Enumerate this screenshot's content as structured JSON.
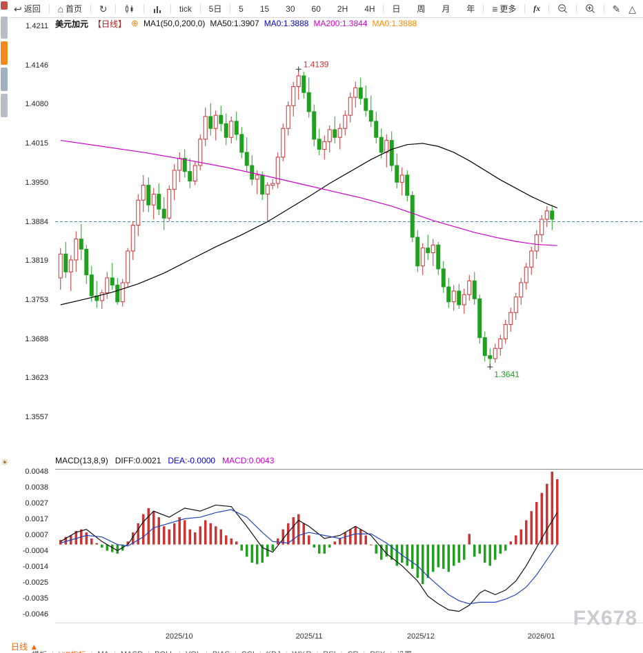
{
  "icons": {
    "back": "↩",
    "home": "⌂",
    "refresh": "↻",
    "menu": "≡",
    "pen": "✎",
    "triangle": "△",
    "sun": "☀",
    "plus": "⊕"
  },
  "toolbar": {
    "back_label": "返回",
    "home_label": "首页",
    "tick_label": "tick",
    "five_day_label": "5日",
    "intervals": [
      "5",
      "15",
      "30",
      "60",
      "2H",
      "4H"
    ],
    "periods": [
      "日",
      "周",
      "月",
      "年"
    ],
    "more_label": "更多",
    "fx_label": "fx"
  },
  "chart_header": {
    "symbol": "美元加元",
    "period_tag": "【日线】",
    "ma_settings": "MA1(50,0,200,0)",
    "ma50": "MA50:1.3907",
    "ma0_blue": "MA0:1.3888",
    "ma200": "MA200:1.3844",
    "ma0_orange": "MA0:1.3888"
  },
  "macd_header": {
    "name": "MACD(13,8,9)",
    "diff": "DIFF:0.0021",
    "dea": "DEA:-0.0000",
    "macd": "MACD:0.0043"
  },
  "price_axis": [
    "1.4211",
    "1.4146",
    "1.4080",
    "1.4015",
    "1.3950",
    "1.3884",
    "1.3819",
    "1.3753",
    "1.3688",
    "1.3623",
    "1.3557"
  ],
  "macd_axis": [
    "0.0048",
    "0.0038",
    "0.0027",
    "0.0017",
    "0.0007",
    "-0.0004",
    "-0.0014",
    "-0.0025",
    "-0.0035",
    "-0.0046"
  ],
  "x_axis": [
    "2025/10",
    "2025/11",
    "2025/12",
    "2026/01"
  ],
  "annotations": {
    "high": "1.4139",
    "low": "1.3641"
  },
  "bottom_bar": {
    "period_label": "日线 ▲",
    "tabs": [
      "模板",
      "VIP指标",
      "MA",
      "MACD",
      "BOLL",
      "VOL",
      "BIAS",
      "CCI",
      "KDJ",
      "W%R",
      "RSI",
      "CR",
      "PSY",
      "设置"
    ],
    "highlight_tab": "VIP指标"
  },
  "watermark": "FX678",
  "colors": {
    "up": "#cc3333",
    "down": "#1fa01f",
    "ma_fast": "#000000",
    "ma_slow": "#cc00cc",
    "dashed": "#3a8fa3",
    "diff_line": "#111111",
    "dea_line": "#2244bb",
    "highlight": "#ff6600"
  },
  "chart_data": {
    "type": "candlestick",
    "symbol": "美元加元 (USD/CAD)",
    "interval": "daily",
    "price_axis_top": 1.4211,
    "price_axis_bottom": 1.3557,
    "last_price": 1.3884,
    "high_point": 1.4139,
    "low_point": 1.3641,
    "x_labels": [
      "2025/10",
      "2025/11",
      "2025/12",
      "2026/01"
    ],
    "candles": [
      [
        1.379,
        1.384,
        1.377,
        1.383
      ],
      [
        1.383,
        1.385,
        1.379,
        1.38
      ],
      [
        1.38,
        1.3828,
        1.3768,
        1.382
      ],
      [
        1.382,
        1.3868,
        1.38,
        1.3855
      ],
      [
        1.3855,
        1.388,
        1.382,
        1.3838
      ],
      [
        1.3838,
        1.3845,
        1.378,
        1.3795
      ],
      [
        1.3795,
        1.381,
        1.375,
        1.376
      ],
      [
        1.376,
        1.3785,
        1.374,
        1.3752
      ],
      [
        1.3752,
        1.377,
        1.3738,
        1.3765
      ],
      [
        1.3765,
        1.38,
        1.3755,
        1.379
      ],
      [
        1.379,
        1.3815,
        1.377,
        1.3778
      ],
      [
        1.3778,
        1.379,
        1.3745,
        1.375
      ],
      [
        1.375,
        1.3788,
        1.3742,
        1.3782
      ],
      [
        1.3782,
        1.384,
        1.3775,
        1.3835
      ],
      [
        1.3835,
        1.3885,
        1.382,
        1.3878
      ],
      [
        1.3878,
        1.393,
        1.386,
        1.392
      ],
      [
        1.392,
        1.3962,
        1.39,
        1.3945
      ],
      [
        1.3945,
        1.3958,
        1.39,
        1.3912
      ],
      [
        1.3912,
        1.394,
        1.3888,
        1.393
      ],
      [
        1.393,
        1.3948,
        1.3895,
        1.3905
      ],
      [
        1.3905,
        1.3925,
        1.387,
        1.389
      ],
      [
        1.389,
        1.3945,
        1.3885,
        1.3938
      ],
      [
        1.3938,
        1.398,
        1.392,
        1.397
      ],
      [
        1.397,
        1.4,
        1.395,
        1.399
      ],
      [
        1.399,
        1.4005,
        1.3958,
        1.3968
      ],
      [
        1.3968,
        1.399,
        1.394,
        1.3952
      ],
      [
        1.3952,
        1.3985,
        1.3945,
        1.3978
      ],
      [
        1.3978,
        1.403,
        1.397,
        1.4022
      ],
      [
        1.4022,
        1.4075,
        1.401,
        1.406
      ],
      [
        1.406,
        1.4082,
        1.4028,
        1.404
      ],
      [
        1.404,
        1.407,
        1.402,
        1.4062
      ],
      [
        1.4062,
        1.4078,
        1.4035,
        1.4048
      ],
      [
        1.4048,
        1.4065,
        1.4012,
        1.4025
      ],
      [
        1.4025,
        1.406,
        1.4015,
        1.4052
      ],
      [
        1.4052,
        1.4068,
        1.402,
        1.403
      ],
      [
        1.403,
        1.4042,
        1.399,
        1.4
      ],
      [
        1.4,
        1.4025,
        1.3968,
        1.3978
      ],
      [
        1.3978,
        1.3995,
        1.3945,
        1.3955
      ],
      [
        1.3955,
        1.397,
        1.393,
        1.3962
      ],
      [
        1.3962,
        1.3968,
        1.392,
        1.393
      ],
      [
        1.393,
        1.395,
        1.3884,
        1.3945
      ],
      [
        1.3945,
        1.3955,
        1.3938,
        1.3948
      ],
      [
        1.3948,
        1.4,
        1.394,
        1.3992
      ],
      [
        1.3992,
        1.4048,
        1.3985,
        1.404
      ],
      [
        1.404,
        1.4085,
        1.4028,
        1.4078
      ],
      [
        1.4078,
        1.4118,
        1.406,
        1.411
      ],
      [
        1.411,
        1.4139,
        1.4088,
        1.4128
      ],
      [
        1.4128,
        1.4135,
        1.409,
        1.41
      ],
      [
        1.41,
        1.4125,
        1.4058,
        1.4068
      ],
      [
        1.4068,
        1.408,
        1.401,
        1.4022
      ],
      [
        1.4022,
        1.404,
        1.3995,
        1.4005
      ],
      [
        1.4005,
        1.4028,
        1.3988,
        1.4018
      ],
      [
        1.4018,
        1.4045,
        1.4,
        1.4038
      ],
      [
        1.4038,
        1.406,
        1.4015,
        1.4025
      ],
      [
        1.4025,
        1.4048,
        1.4005,
        1.404
      ],
      [
        1.404,
        1.407,
        1.4028,
        1.4062
      ],
      [
        1.4062,
        1.41,
        1.405,
        1.4092
      ],
      [
        1.4092,
        1.4118,
        1.4075,
        1.4108
      ],
      [
        1.4108,
        1.4125,
        1.408,
        1.409
      ],
      [
        1.409,
        1.4112,
        1.406,
        1.407
      ],
      [
        1.407,
        1.4095,
        1.4042,
        1.4052
      ],
      [
        1.4052,
        1.4068,
        1.4015,
        1.4025
      ],
      [
        1.4025,
        1.404,
        1.399,
        1.4
      ],
      [
        1.4,
        1.403,
        1.3975,
        1.402
      ],
      [
        1.402,
        1.4035,
        1.3968,
        1.3978
      ],
      [
        1.3978,
        1.3998,
        1.394,
        1.395
      ],
      [
        1.395,
        1.3975,
        1.3928,
        1.3962
      ],
      [
        1.3962,
        1.397,
        1.3918,
        1.3928
      ],
      [
        1.3928,
        1.3935,
        1.385,
        1.3858
      ],
      [
        1.3858,
        1.387,
        1.38,
        1.381
      ],
      [
        1.381,
        1.3848,
        1.3795,
        1.384
      ],
      [
        1.384,
        1.3862,
        1.382,
        1.3832
      ],
      [
        1.3832,
        1.3855,
        1.381,
        1.3845
      ],
      [
        1.3845,
        1.385,
        1.3795,
        1.3805
      ],
      [
        1.3805,
        1.3818,
        1.3765,
        1.3775
      ],
      [
        1.3775,
        1.379,
        1.374,
        1.375
      ],
      [
        1.375,
        1.3778,
        1.3735,
        1.3768
      ],
      [
        1.3768,
        1.378,
        1.3738,
        1.3745
      ],
      [
        1.3745,
        1.3772,
        1.373,
        1.3762
      ],
      [
        1.3762,
        1.3795,
        1.3752,
        1.3785
      ],
      [
        1.3785,
        1.38,
        1.3745,
        1.3755
      ],
      [
        1.3755,
        1.3762,
        1.368,
        1.369
      ],
      [
        1.369,
        1.37,
        1.365,
        1.366
      ],
      [
        1.366,
        1.3672,
        1.3641,
        1.3655
      ],
      [
        1.3655,
        1.368,
        1.3648,
        1.3672
      ],
      [
        1.3672,
        1.3695,
        1.366,
        1.3688
      ],
      [
        1.3688,
        1.372,
        1.368,
        1.3712
      ],
      [
        1.3712,
        1.374,
        1.37,
        1.3732
      ],
      [
        1.3732,
        1.3765,
        1.372,
        1.3758
      ],
      [
        1.3758,
        1.379,
        1.3745,
        1.3782
      ],
      [
        1.3782,
        1.3815,
        1.377,
        1.3808
      ],
      [
        1.3808,
        1.3842,
        1.3795,
        1.3835
      ],
      [
        1.3835,
        1.387,
        1.3822,
        1.3862
      ],
      [
        1.3862,
        1.3895,
        1.385,
        1.3888
      ],
      [
        1.3888,
        1.391,
        1.3875,
        1.3902
      ],
      [
        1.3902,
        1.3912,
        1.387,
        1.3888
      ]
    ],
    "ma50_keypoints": [
      [
        0,
        1.3745
      ],
      [
        5,
        1.3755
      ],
      [
        10,
        1.3766
      ],
      [
        15,
        1.378
      ],
      [
        20,
        1.3798
      ],
      [
        25,
        1.382
      ],
      [
        30,
        1.3842
      ],
      [
        35,
        1.3862
      ],
      [
        40,
        1.3884
      ],
      [
        44,
        1.3905
      ],
      [
        48,
        1.3926
      ],
      [
        52,
        1.3948
      ],
      [
        56,
        1.3968
      ],
      [
        60,
        1.3988
      ],
      [
        64,
        1.4005
      ],
      [
        67,
        1.4013
      ],
      [
        70,
        1.4015
      ],
      [
        73,
        1.401
      ],
      [
        76,
        1.4
      ],
      [
        79,
        1.3986
      ],
      [
        82,
        1.397
      ],
      [
        85,
        1.3954
      ],
      [
        88,
        1.394
      ],
      [
        91,
        1.3926
      ],
      [
        94,
        1.3914
      ],
      [
        96,
        1.3907
      ]
    ],
    "ma200_keypoints": [
      [
        0,
        1.402
      ],
      [
        8,
        1.401
      ],
      [
        16,
        1.4
      ],
      [
        24,
        1.3988
      ],
      [
        32,
        1.3975
      ],
      [
        40,
        1.396
      ],
      [
        46,
        1.3948
      ],
      [
        52,
        1.3936
      ],
      [
        58,
        1.3924
      ],
      [
        64,
        1.391
      ],
      [
        68,
        1.3898
      ],
      [
        72,
        1.3886
      ],
      [
        76,
        1.3876
      ],
      [
        80,
        1.3866
      ],
      [
        84,
        1.3858
      ],
      [
        88,
        1.3851
      ],
      [
        92,
        1.3846
      ],
      [
        96,
        1.3844
      ]
    ],
    "macd": {
      "axis_top": 0.0048,
      "axis_bottom": -0.0046,
      "diff_end": 0.0021,
      "dea_end": -0.0,
      "macd_end": 0.0043,
      "hist": [
        0.0003,
        0.0005,
        0.0006,
        0.0009,
        0.001,
        0.0008,
        0.0004,
        0.0001,
        -0.0002,
        -0.0004,
        -0.0005,
        -0.0006,
        -0.0004,
        0.0002,
        0.0008,
        0.0014,
        0.002,
        0.0024,
        0.0022,
        0.0018,
        0.0012,
        0.001,
        0.0014,
        0.0018,
        0.0016,
        0.001,
        0.0008,
        0.0012,
        0.0016,
        0.0014,
        0.0012,
        0.001,
        0.0006,
        0.0004,
        0.0002,
        -0.0004,
        -0.0008,
        -0.0012,
        -0.0013,
        -0.0012,
        -0.0008,
        -0.0004,
        0.0004,
        0.001,
        0.0014,
        0.0018,
        0.002,
        0.0014,
        0.0006,
        -0.0002,
        -0.0006,
        -0.0006,
        -0.0002,
        0.0002,
        0.0004,
        0.0008,
        0.001,
        0.0012,
        0.001,
        0.0006,
        0.0,
        -0.0006,
        -0.001,
        -0.0008,
        -0.001,
        -0.0014,
        -0.0012,
        -0.0014,
        -0.0016,
        -0.0022,
        -0.0026,
        -0.0022,
        -0.0018,
        -0.0015,
        -0.0016,
        -0.0018,
        -0.0014,
        -0.0012,
        -0.001,
        0.0007,
        -0.0008,
        -0.0006,
        -0.0012,
        -0.0014,
        -0.001,
        -0.0006,
        -0.0004,
        0.0002,
        0.0006,
        0.001,
        0.0016,
        0.0022,
        0.0028,
        0.0034,
        0.004,
        0.0048,
        0.0043
      ],
      "diff_keypoints": [
        [
          0,
          0.0002
        ],
        [
          3,
          0.0008
        ],
        [
          5,
          0.001
        ],
        [
          8,
          0.0002
        ],
        [
          11,
          -0.0004
        ],
        [
          13,
          0.0
        ],
        [
          16,
          0.0015
        ],
        [
          18,
          0.0022
        ],
        [
          21,
          0.0018
        ],
        [
          24,
          0.0024
        ],
        [
          27,
          0.0022
        ],
        [
          30,
          0.0026
        ],
        [
          33,
          0.0025
        ],
        [
          36,
          0.0012
        ],
        [
          39,
          -0.0002
        ],
        [
          41,
          -0.0005
        ],
        [
          44,
          0.0008
        ],
        [
          46,
          0.0016
        ],
        [
          48,
          0.0012
        ],
        [
          51,
          0.0004
        ],
        [
          54,
          0.0006
        ],
        [
          57,
          0.0012
        ],
        [
          60,
          0.0006
        ],
        [
          63,
          -0.0006
        ],
        [
          66,
          -0.0014
        ],
        [
          69,
          -0.0024
        ],
        [
          71,
          -0.0034
        ],
        [
          73,
          -0.0039
        ],
        [
          75,
          -0.0043
        ],
        [
          77,
          -0.0044
        ],
        [
          79,
          -0.004
        ],
        [
          81,
          -0.0032
        ],
        [
          82,
          -0.003
        ],
        [
          84,
          -0.0033
        ],
        [
          86,
          -0.003
        ],
        [
          88,
          -0.0024
        ],
        [
          90,
          -0.0014
        ],
        [
          92,
          -0.0002
        ],
        [
          94,
          0.001
        ],
        [
          96,
          0.0021
        ]
      ],
      "dea_keypoints": [
        [
          0,
          0.0001
        ],
        [
          5,
          0.0006
        ],
        [
          8,
          0.0005
        ],
        [
          11,
          0.0
        ],
        [
          13,
          -0.0001
        ],
        [
          16,
          0.0005
        ],
        [
          18,
          0.0011
        ],
        [
          21,
          0.0014
        ],
        [
          24,
          0.0017
        ],
        [
          27,
          0.0018
        ],
        [
          30,
          0.0021
        ],
        [
          33,
          0.0023
        ],
        [
          36,
          0.0018
        ],
        [
          39,
          0.0008
        ],
        [
          41,
          0.0002
        ],
        [
          44,
          0.0001
        ],
        [
          46,
          0.0006
        ],
        [
          48,
          0.0008
        ],
        [
          51,
          0.0006
        ],
        [
          54,
          0.0004
        ],
        [
          57,
          0.0007
        ],
        [
          60,
          0.0007
        ],
        [
          63,
          0.0001
        ],
        [
          66,
          -0.0007
        ],
        [
          69,
          -0.0014
        ],
        [
          71,
          -0.0021
        ],
        [
          73,
          -0.0027
        ],
        [
          75,
          -0.0033
        ],
        [
          77,
          -0.0037
        ],
        [
          79,
          -0.0039
        ],
        [
          81,
          -0.0038
        ],
        [
          84,
          -0.0038
        ],
        [
          86,
          -0.0036
        ],
        [
          88,
          -0.0033
        ],
        [
          90,
          -0.0028
        ],
        [
          92,
          -0.002
        ],
        [
          94,
          -0.001
        ],
        [
          96,
          0.0
        ]
      ]
    }
  }
}
